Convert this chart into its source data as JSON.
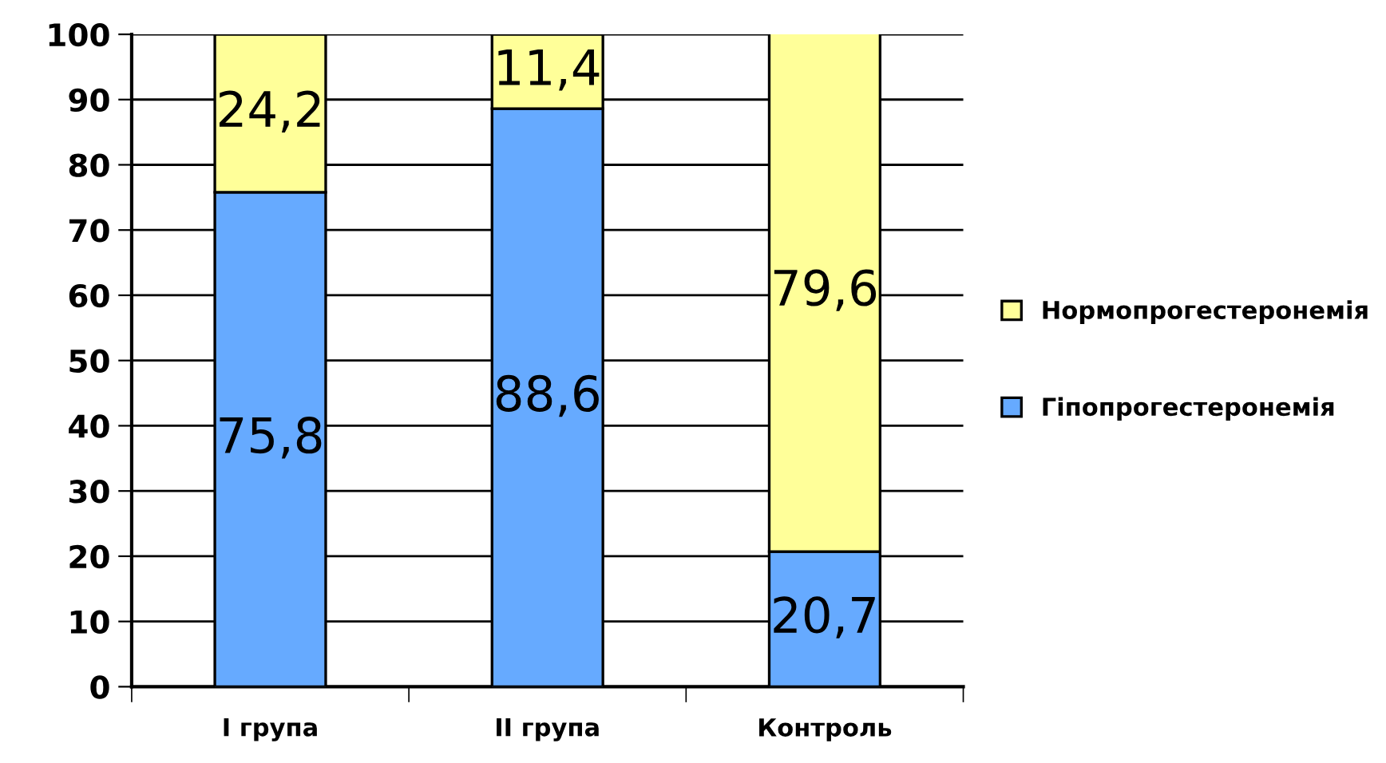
{
  "chart_data": {
    "type": "bar",
    "stacked": true,
    "categories": [
      "I група",
      "II група",
      "Контроль"
    ],
    "series": [
      {
        "name": "Гіпопрогестеронемія",
        "color": "#66aaff",
        "values": [
          75.8,
          88.6,
          20.7
        ],
        "value_labels": [
          "75,8",
          "88,6",
          "20,7"
        ]
      },
      {
        "name": "Нормопрогестеронемія",
        "color": "#ffff99",
        "values": [
          24.2,
          11.4,
          79.6
        ],
        "value_labels": [
          "24,2",
          "11,4",
          "79,6"
        ]
      }
    ],
    "ylim": [
      0,
      100
    ],
    "yticks": [
      0,
      10,
      20,
      30,
      40,
      50,
      60,
      70,
      80,
      90,
      100
    ],
    "grid": "y",
    "legend": "right"
  }
}
